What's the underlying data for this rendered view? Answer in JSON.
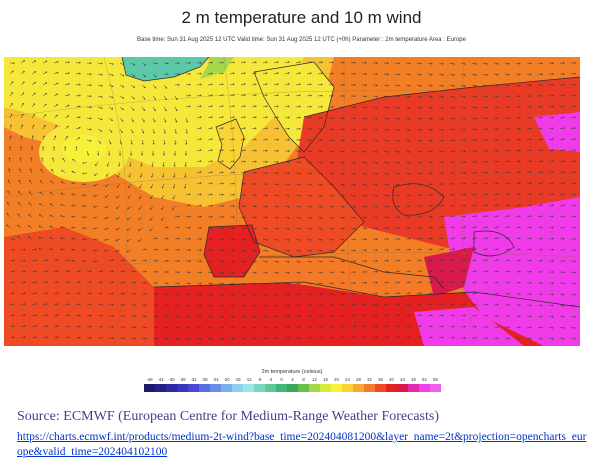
{
  "title": "2 m temperature and 10 m wind",
  "subtitle": "Base time: Sun 31 Aug 2025 12 UTC Valid time: Sun 31 Aug 2025 12 UTC (+0h) Parameter : 2m temperature Area : Europe",
  "legend": {
    "title": "2m temperature (celsius)",
    "ticks": [
      "-48",
      "-44",
      "-40",
      "-36",
      "-32",
      "-28",
      "-24",
      "-20",
      "-16",
      "-12",
      "-8",
      "-4",
      "0",
      "4",
      "8",
      "12",
      "16",
      "20",
      "24",
      "28",
      "32",
      "36",
      "40",
      "44",
      "48",
      "52",
      "56"
    ],
    "colors": [
      "#1a1a6e",
      "#24208a",
      "#2e2aa6",
      "#3a35c0",
      "#4a46d6",
      "#5b6be0",
      "#6a8ee6",
      "#7bb0ea",
      "#8cd0ee",
      "#9ae6e6",
      "#7ad8c0",
      "#5ec89a",
      "#3fb873",
      "#3aa85a",
      "#66c04a",
      "#a6d84a",
      "#d8ea3c",
      "#f6f23a",
      "#fad432",
      "#f8a82c",
      "#f47a28",
      "#ee4a24",
      "#e42020",
      "#d81a4a",
      "#e02ab0",
      "#f040e8",
      "#f060f0"
    ]
  },
  "map_colors": {
    "sea_orange": "#f27e26",
    "land_red": "#e83a24",
    "hot_magenta": "#f03ce8",
    "yellow": "#f6e83a",
    "greenland_teal": "#5cc8a8",
    "coast": "#2a2a2a"
  },
  "source_text": "Source: ECMWF (European Centre for Medium-Range Weather Forecasts)",
  "source_url": "https://charts.ecmwf.int/products/medium-2t-wind?base_time=202404081200&layer_name=2t&projection=opencharts_europe&valid_time=202404102100"
}
